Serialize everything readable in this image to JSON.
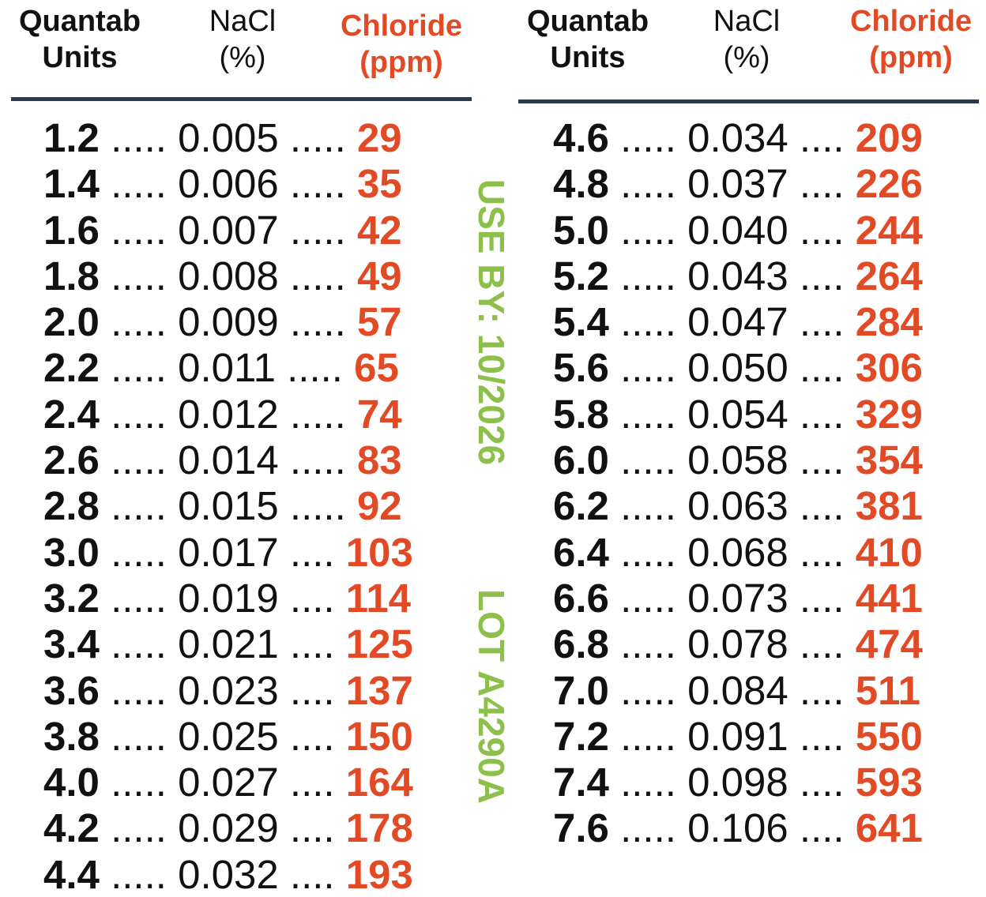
{
  "headers": {
    "units": [
      "Quantab",
      "Units"
    ],
    "nacl": [
      "NaCl",
      "(%)"
    ],
    "chloride": [
      "Chloride",
      "(ppm)"
    ]
  },
  "colors": {
    "chloride": "#e24a25",
    "stamp": "#8dc04a",
    "rule": "#2a3a4e"
  },
  "stamp": {
    "use_by": "USE BY: 10/2026",
    "lot": "LOT A4290A"
  },
  "left_rows": [
    {
      "u": "1.2",
      "n": "0.005",
      "c": "29",
      "d1": ".....",
      "d2": "....."
    },
    {
      "u": "1.4",
      "n": "0.006",
      "c": "35",
      "d1": ".....",
      "d2": "....."
    },
    {
      "u": "1.6",
      "n": "0.007",
      "c": "42",
      "d1": ".....",
      "d2": "....."
    },
    {
      "u": "1.8",
      "n": "0.008",
      "c": "49",
      "d1": ".....",
      "d2": "....."
    },
    {
      "u": "2.0",
      "n": "0.009",
      "c": "57",
      "d1": ".....",
      "d2": "....."
    },
    {
      "u": "2.2",
      "n": "0.011",
      "c": "65",
      "d1": ".....",
      "d2": "....."
    },
    {
      "u": "2.4",
      "n": "0.012",
      "c": "74",
      "d1": ".....",
      "d2": "....."
    },
    {
      "u": "2.6",
      "n": "0.014",
      "c": "83",
      "d1": ".....",
      "d2": "....."
    },
    {
      "u": "2.8",
      "n": "0.015",
      "c": "92",
      "d1": ".....",
      "d2": "....."
    },
    {
      "u": "3.0",
      "n": "0.017",
      "c": "103",
      "d1": ".....",
      "d2": "...."
    },
    {
      "u": "3.2",
      "n": "0.019",
      "c": "114",
      "d1": ".....",
      "d2": "...."
    },
    {
      "u": "3.4",
      "n": "0.021",
      "c": "125",
      "d1": ".....",
      "d2": "...."
    },
    {
      "u": "3.6",
      "n": "0.023",
      "c": "137",
      "d1": ".....",
      "d2": "...."
    },
    {
      "u": "3.8",
      "n": "0.025",
      "c": "150",
      "d1": ".....",
      "d2": "...."
    },
    {
      "u": "4.0",
      "n": "0.027",
      "c": "164",
      "d1": ".....",
      "d2": "...."
    },
    {
      "u": "4.2",
      "n": "0.029",
      "c": "178",
      "d1": ".....",
      "d2": "...."
    },
    {
      "u": "4.4",
      "n": "0.032",
      "c": "193",
      "d1": ".....",
      "d2": "...."
    }
  ],
  "right_rows": [
    {
      "u": "4.6",
      "n": "0.034",
      "c": "209",
      "d1": ".....",
      "d2": "...."
    },
    {
      "u": "4.8",
      "n": "0.037",
      "c": "226",
      "d1": ".....",
      "d2": "...."
    },
    {
      "u": "5.0",
      "n": "0.040",
      "c": "244",
      "d1": ".....",
      "d2": "...."
    },
    {
      "u": "5.2",
      "n": "0.043",
      "c": "264",
      "d1": ".....",
      "d2": "...."
    },
    {
      "u": "5.4",
      "n": "0.047",
      "c": "284",
      "d1": ".....",
      "d2": "...."
    },
    {
      "u": "5.6",
      "n": "0.050",
      "c": "306",
      "d1": ".....",
      "d2": "...."
    },
    {
      "u": "5.8",
      "n": "0.054",
      "c": "329",
      "d1": ".....",
      "d2": "...."
    },
    {
      "u": "6.0",
      "n": "0.058",
      "c": "354",
      "d1": ".....",
      "d2": "...."
    },
    {
      "u": "6.2",
      "n": "0.063",
      "c": "381",
      "d1": ".....",
      "d2": "...."
    },
    {
      "u": "6.4",
      "n": "0.068",
      "c": "410",
      "d1": ".....",
      "d2": "...."
    },
    {
      "u": "6.6",
      "n": "0.073",
      "c": "441",
      "d1": ".....",
      "d2": "...."
    },
    {
      "u": "6.8",
      "n": "0.078",
      "c": "474",
      "d1": ".....",
      "d2": "...."
    },
    {
      "u": "7.0",
      "n": "0.084",
      "c": "511",
      "d1": ".....",
      "d2": "...."
    },
    {
      "u": "7.2",
      "n": "0.091",
      "c": "550",
      "d1": ".....",
      "d2": "...."
    },
    {
      "u": "7.4",
      "n": "0.098",
      "c": "593",
      "d1": ".....",
      "d2": "...."
    },
    {
      "u": "7.6",
      "n": "0.106",
      "c": "641",
      "d1": ".....",
      "d2": "...."
    }
  ]
}
